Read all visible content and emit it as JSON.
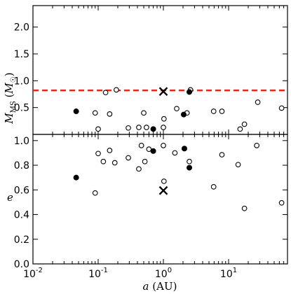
{
  "chart_data": [
    {
      "type": "scatter",
      "panel": "top",
      "ylabel": "M_MS (M_☉)",
      "ylim": [
        0.0,
        2.4
      ],
      "yticks": [
        "0.5",
        "1.0",
        "1.5",
        "2.0"
      ],
      "ytick_values": [
        0.5,
        1.0,
        1.5,
        2.0
      ],
      "xlim": [
        0.01,
        80
      ],
      "xscale": "log",
      "hline": {
        "y": 0.82,
        "color": "#e8241b",
        "style": "dashed"
      },
      "series": [
        {
          "marker": "open-circle",
          "points": [
            [
              0.09,
              0.4
            ],
            [
              0.1,
              0.1
            ],
            [
              0.13,
              0.78
            ],
            [
              0.15,
              0.38
            ],
            [
              0.19,
              0.83
            ],
            [
              0.29,
              0.12
            ],
            [
              0.42,
              0.13
            ],
            [
              0.5,
              0.4
            ],
            [
              0.55,
              0.13
            ],
            [
              1.0,
              0.13
            ],
            [
              1.02,
              0.29
            ],
            [
              1.6,
              0.48
            ],
            [
              2.3,
              0.4
            ],
            [
              2.6,
              0.83
            ],
            [
              5.9,
              0.43
            ],
            [
              7.9,
              0.43
            ],
            [
              15.0,
              0.1
            ],
            [
              17.5,
              0.19
            ],
            [
              28.0,
              0.6
            ],
            [
              65.0,
              0.49
            ]
          ]
        },
        {
          "marker": "filled-circle",
          "points": [
            [
              0.046,
              0.43
            ],
            [
              0.7,
              0.1
            ],
            [
              2.05,
              0.37
            ],
            [
              2.5,
              0.79
            ]
          ]
        },
        {
          "marker": "cross",
          "points": [
            [
              1.0,
              0.8
            ]
          ]
        }
      ]
    },
    {
      "type": "scatter",
      "panel": "bottom",
      "ylabel": "e",
      "xlabel": "a (AU)",
      "ylim": [
        0.0,
        1.05
      ],
      "yticks": [
        "0.0",
        "0.2",
        "0.4",
        "0.6",
        "0.8",
        "1.0"
      ],
      "ytick_values": [
        0.0,
        0.2,
        0.4,
        0.6,
        0.8,
        1.0
      ],
      "xlim": [
        0.01,
        80
      ],
      "xscale": "log",
      "xticks": [
        "10",
        "10",
        "10",
        "10"
      ],
      "xtick_exponents": [
        "-2",
        "-1",
        "0",
        "1"
      ],
      "xtick_values": [
        0.01,
        0.1,
        1,
        10
      ],
      "series": [
        {
          "marker": "open-circle",
          "points": [
            [
              0.09,
              0.575
            ],
            [
              0.1,
              0.895
            ],
            [
              0.12,
              0.83
            ],
            [
              0.15,
              0.92
            ],
            [
              0.18,
              0.82
            ],
            [
              0.29,
              0.86
            ],
            [
              0.42,
              0.77
            ],
            [
              0.46,
              0.96
            ],
            [
              0.52,
              0.83
            ],
            [
              0.6,
              0.93
            ],
            [
              1.0,
              0.96
            ],
            [
              1.02,
              0.67
            ],
            [
              1.5,
              0.9
            ],
            [
              2.5,
              0.83
            ],
            [
              5.9,
              0.625
            ],
            [
              7.9,
              0.885
            ],
            [
              14.0,
              0.805
            ],
            [
              17.5,
              0.45
            ],
            [
              27.0,
              0.96
            ],
            [
              65.0,
              0.495
            ]
          ]
        },
        {
          "marker": "filled-circle",
          "points": [
            [
              0.046,
              0.7
            ],
            [
              0.7,
              0.915
            ],
            [
              2.1,
              0.935
            ],
            [
              2.5,
              0.78
            ]
          ]
        },
        {
          "marker": "cross",
          "points": [
            [
              1.0,
              0.595
            ]
          ]
        }
      ]
    }
  ]
}
